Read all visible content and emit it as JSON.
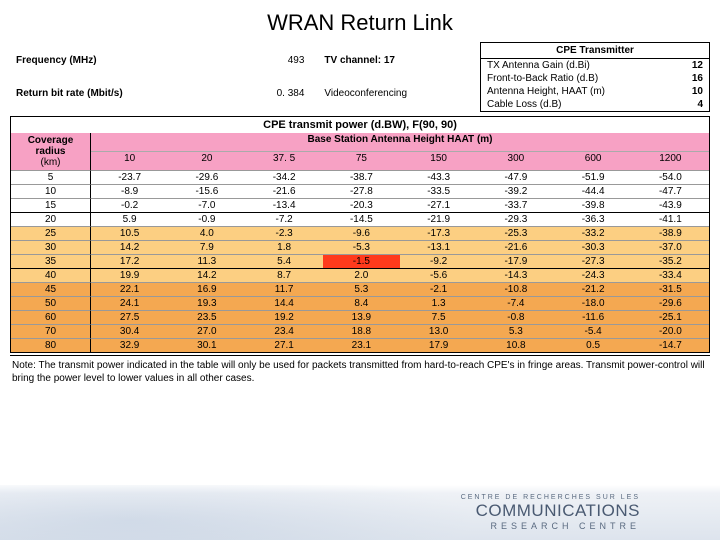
{
  "title": "WRAN Return Link",
  "params": {
    "freq_label": "Frequency (MHz)",
    "freq_value": "493",
    "tv_channel": "TV channel: 17",
    "bitrate_label": "Return bit rate (Mbit/s)",
    "bitrate_value": "0. 384",
    "app": "Videoconferencing"
  },
  "cpe": {
    "header": "CPE Transmitter",
    "rows": [
      {
        "label": "TX Antenna Gain (d.Bi)",
        "value": "12"
      },
      {
        "label": "Front-to-Back Ratio (d.B)",
        "value": "16"
      },
      {
        "label": "Antenna Height, HAAT (m)",
        "value": "10"
      },
      {
        "label": "Cable Loss (d.B)",
        "value": "4"
      }
    ]
  },
  "table": {
    "title": "CPE transmit power (d.BW), F(90, 90)",
    "coverage_label_1": "Coverage radius",
    "coverage_label_2": "(km)",
    "bsah_label": "Base Station Antenna Height HAAT (m)",
    "columns": [
      "10",
      "20",
      "37. 5",
      "75",
      "150",
      "300",
      "600",
      "1200"
    ],
    "header_bg": "#f7a1c4",
    "coverage_bg": "#f7a1c4",
    "rows": [
      {
        "radius": "5",
        "cells": [
          "-23.7",
          "-29.6",
          "-34.2",
          "-38.7",
          "-43.3",
          "-47.9",
          "-51.9",
          "-54.0"
        ],
        "bg": "#ffffff"
      },
      {
        "radius": "10",
        "cells": [
          "-8.9",
          "-15.6",
          "-21.6",
          "-27.8",
          "-33.5",
          "-39.2",
          "-44.4",
          "-47.7"
        ],
        "bg": "#ffffff"
      },
      {
        "radius": "15",
        "cells": [
          "-0.2",
          "-7.0",
          "-13.4",
          "-20.3",
          "-27.1",
          "-33.7",
          "-39.8",
          "-43.9"
        ],
        "bg": "#ffffff"
      },
      {
        "radius": "20",
        "cells": [
          "5.9",
          "-0.9",
          "-7.2",
          "-14.5",
          "-21.9",
          "-29.3",
          "-36.3",
          "-41.1"
        ],
        "bg": "#ffffff"
      },
      {
        "radius": "25",
        "cells": [
          "10.5",
          "4.0",
          "-2.3",
          "-9.6",
          "-17.3",
          "-25.3",
          "-33.2",
          "-38.9"
        ],
        "bg": "#fccf82"
      },
      {
        "radius": "30",
        "cells": [
          "14.2",
          "7.9",
          "1.8",
          "-5.3",
          "-13.1",
          "-21.6",
          "-30.3",
          "-37.0"
        ],
        "bg": "#fccf82"
      },
      {
        "radius": "35",
        "cells": [
          "17.2",
          "11.3",
          "5.4",
          "-1.5",
          "-9.2",
          "-17.9",
          "-27.3",
          "-35.2"
        ],
        "bg": "#fccf82",
        "special": {
          "3": "#ff3a1c"
        }
      },
      {
        "radius": "40",
        "cells": [
          "19.9",
          "14.2",
          "8.7",
          "2.0",
          "-5.6",
          "-14.3",
          "-24.3",
          "-33.4"
        ],
        "bg": "#fccf82"
      },
      {
        "radius": "45",
        "cells": [
          "22.1",
          "16.9",
          "11.7",
          "5.3",
          "-2.1",
          "-10.8",
          "-21.2",
          "-31.5"
        ],
        "bg": "#f4a851"
      },
      {
        "radius": "50",
        "cells": [
          "24.1",
          "19.3",
          "14.4",
          "8.4",
          "1.3",
          "-7.4",
          "-18.0",
          "-29.6"
        ],
        "bg": "#f4a851"
      },
      {
        "radius": "60",
        "cells": [
          "27.5",
          "23.5",
          "19.2",
          "13.9",
          "7.5",
          "-0.8",
          "-11.6",
          "-25.1"
        ],
        "bg": "#f4a851"
      },
      {
        "radius": "70",
        "cells": [
          "30.4",
          "27.0",
          "23.4",
          "18.8",
          "13.0",
          "5.3",
          "-5.4",
          "-20.0"
        ],
        "bg": "#f4a851"
      },
      {
        "radius": "80",
        "cells": [
          "32.9",
          "30.1",
          "27.1",
          "23.1",
          "17.9",
          "10.8",
          "0.5",
          "-14.7"
        ],
        "bg": "#f4a851"
      }
    ],
    "group_breaks": [
      3,
      7
    ]
  },
  "note": "Note: The transmit power indicated in the table will only be used for packets transmitted from hard-to-reach CPE's in fringe areas.   Transmit power-control will bring the power level to lower values in all other cases.",
  "footer": {
    "line1": "CENTRE DE RECHERCHES SUR LES",
    "line2": "COMMUNICATIONS",
    "line3": "RESEARCH CENTRE"
  }
}
